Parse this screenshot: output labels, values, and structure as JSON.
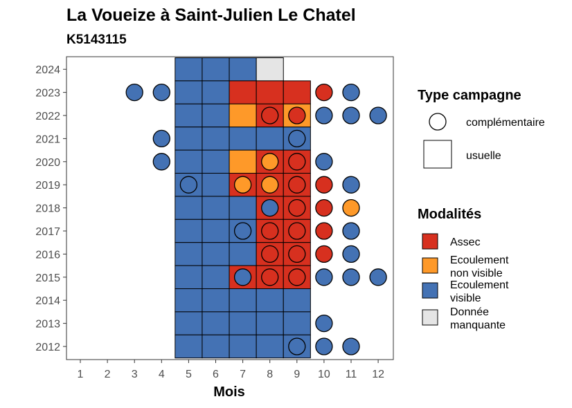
{
  "chart_data": {
    "type": "heatmap",
    "title": "La Voueize à Saint-Julien Le Chatel",
    "subtitle": "K5143115",
    "xlabel": "Mois",
    "ylabel": "",
    "x_ticks": [
      "1",
      "2",
      "3",
      "4",
      "5",
      "6",
      "7",
      "8",
      "9",
      "10",
      "11",
      "12"
    ],
    "y_ticks": [
      "2012",
      "2013",
      "2014",
      "2015",
      "2016",
      "2017",
      "2018",
      "2019",
      "2020",
      "2021",
      "2022",
      "2023",
      "2024"
    ],
    "xlim": [
      0.5,
      12.5
    ],
    "ylim": [
      2011.5,
      2024.5
    ],
    "grid": false,
    "colors": {
      "Assec": "#d7301f",
      "Ecoulement non visible": "#fe9929",
      "Ecoulement visible": "#4472b4",
      "Donnée manquante": "#e5e5e5"
    },
    "legend": {
      "placement": "right",
      "shape_title": "Type campagne",
      "shape_items": [
        {
          "shape": "circle",
          "label": "complémentaire"
        },
        {
          "shape": "square",
          "label": "usuelle"
        }
      ],
      "fill_title": "Modalités",
      "fill_items": [
        {
          "key": "Assec",
          "lines": [
            "Assec"
          ]
        },
        {
          "key": "Ecoulement non visible",
          "lines": [
            "Ecoulement",
            "non visible"
          ]
        },
        {
          "key": "Ecoulement visible",
          "lines": [
            "Ecoulement",
            "visible"
          ]
        },
        {
          "key": "Donnée manquante",
          "lines": [
            "Donnée",
            "manquante"
          ]
        }
      ]
    },
    "usuelle": [
      {
        "year": 2024,
        "months": [
          "Ecoulement visible",
          "Ecoulement visible",
          "Ecoulement visible",
          "Donnée manquante",
          null
        ]
      },
      {
        "year": 2023,
        "months": [
          "Ecoulement visible",
          "Ecoulement visible",
          "Assec",
          "Assec",
          "Assec"
        ]
      },
      {
        "year": 2022,
        "months": [
          "Ecoulement visible",
          "Ecoulement visible",
          "Ecoulement non visible",
          "Assec",
          "Ecoulement non visible"
        ]
      },
      {
        "year": 2021,
        "months": [
          "Ecoulement visible",
          "Ecoulement visible",
          "Ecoulement visible",
          "Ecoulement visible",
          "Ecoulement visible"
        ]
      },
      {
        "year": 2020,
        "months": [
          "Ecoulement visible",
          "Ecoulement visible",
          "Ecoulement non visible",
          "Assec",
          "Assec"
        ]
      },
      {
        "year": 2019,
        "months": [
          "Ecoulement visible",
          "Ecoulement visible",
          "Assec",
          "Assec",
          "Assec"
        ]
      },
      {
        "year": 2018,
        "months": [
          "Ecoulement visible",
          "Ecoulement visible",
          "Ecoulement visible",
          "Assec",
          "Assec"
        ]
      },
      {
        "year": 2017,
        "months": [
          "Ecoulement visible",
          "Ecoulement visible",
          "Ecoulement visible",
          "Assec",
          "Assec"
        ]
      },
      {
        "year": 2016,
        "months": [
          "Ecoulement visible",
          "Ecoulement visible",
          "Ecoulement visible",
          "Assec",
          "Assec"
        ]
      },
      {
        "year": 2015,
        "months": [
          "Ecoulement visible",
          "Ecoulement visible",
          "Assec",
          "Assec",
          "Assec"
        ]
      },
      {
        "year": 2014,
        "months": [
          "Ecoulement visible",
          "Ecoulement visible",
          "Ecoulement visible",
          "Ecoulement visible",
          "Ecoulement visible"
        ]
      },
      {
        "year": 2013,
        "months": [
          "Ecoulement visible",
          "Ecoulement visible",
          "Ecoulement visible",
          "Ecoulement visible",
          "Ecoulement visible"
        ]
      },
      {
        "year": 2012,
        "months": [
          "Ecoulement visible",
          "Ecoulement visible",
          "Ecoulement visible",
          "Ecoulement visible",
          "Ecoulement visible"
        ]
      }
    ],
    "usuelle_first_month": 5,
    "complementaire": [
      {
        "year": 2023,
        "month": 3,
        "value": "Ecoulement visible"
      },
      {
        "year": 2023,
        "month": 4,
        "value": "Ecoulement visible"
      },
      {
        "year": 2023,
        "month": 10,
        "value": "Assec"
      },
      {
        "year": 2023,
        "month": 11,
        "value": "Ecoulement visible"
      },
      {
        "year": 2022,
        "month": 8,
        "value": "Assec"
      },
      {
        "year": 2022,
        "month": 9,
        "value": "Assec"
      },
      {
        "year": 2022,
        "month": 10,
        "value": "Ecoulement visible"
      },
      {
        "year": 2022,
        "month": 11,
        "value": "Ecoulement visible"
      },
      {
        "year": 2022,
        "month": 12,
        "value": "Ecoulement visible"
      },
      {
        "year": 2021,
        "month": 4,
        "value": "Ecoulement visible"
      },
      {
        "year": 2021,
        "month": 9,
        "value": "Ecoulement visible"
      },
      {
        "year": 2020,
        "month": 4,
        "value": "Ecoulement visible"
      },
      {
        "year": 2020,
        "month": 8,
        "value": "Ecoulement non visible"
      },
      {
        "year": 2020,
        "month": 9,
        "value": "Assec"
      },
      {
        "year": 2020,
        "month": 10,
        "value": "Ecoulement visible"
      },
      {
        "year": 2019,
        "month": 5,
        "value": "Ecoulement visible"
      },
      {
        "year": 2019,
        "month": 7,
        "value": "Ecoulement non visible"
      },
      {
        "year": 2019,
        "month": 8,
        "value": "Ecoulement non visible"
      },
      {
        "year": 2019,
        "month": 9,
        "value": "Assec"
      },
      {
        "year": 2019,
        "month": 10,
        "value": "Assec"
      },
      {
        "year": 2019,
        "month": 11,
        "value": "Ecoulement visible"
      },
      {
        "year": 2018,
        "month": 8,
        "value": "Ecoulement visible"
      },
      {
        "year": 2018,
        "month": 9,
        "value": "Assec"
      },
      {
        "year": 2018,
        "month": 10,
        "value": "Assec"
      },
      {
        "year": 2018,
        "month": 11,
        "value": "Ecoulement non visible"
      },
      {
        "year": 2017,
        "month": 7,
        "value": "Ecoulement visible"
      },
      {
        "year": 2017,
        "month": 8,
        "value": "Assec"
      },
      {
        "year": 2017,
        "month": 9,
        "value": "Assec"
      },
      {
        "year": 2017,
        "month": 10,
        "value": "Assec"
      },
      {
        "year": 2017,
        "month": 11,
        "value": "Ecoulement visible"
      },
      {
        "year": 2016,
        "month": 8,
        "value": "Assec"
      },
      {
        "year": 2016,
        "month": 9,
        "value": "Assec"
      },
      {
        "year": 2016,
        "month": 10,
        "value": "Assec"
      },
      {
        "year": 2016,
        "month": 11,
        "value": "Ecoulement visible"
      },
      {
        "year": 2015,
        "month": 7,
        "value": "Ecoulement visible"
      },
      {
        "year": 2015,
        "month": 8,
        "value": "Assec"
      },
      {
        "year": 2015,
        "month": 9,
        "value": "Assec"
      },
      {
        "year": 2015,
        "month": 10,
        "value": "Ecoulement visible"
      },
      {
        "year": 2015,
        "month": 11,
        "value": "Ecoulement visible"
      },
      {
        "year": 2015,
        "month": 12,
        "value": "Ecoulement visible"
      },
      {
        "year": 2013,
        "month": 10,
        "value": "Ecoulement visible"
      },
      {
        "year": 2012,
        "month": 9,
        "value": "Ecoulement visible"
      },
      {
        "year": 2012,
        "month": 10,
        "value": "Ecoulement visible"
      },
      {
        "year": 2012,
        "month": 11,
        "value": "Ecoulement visible"
      }
    ]
  }
}
